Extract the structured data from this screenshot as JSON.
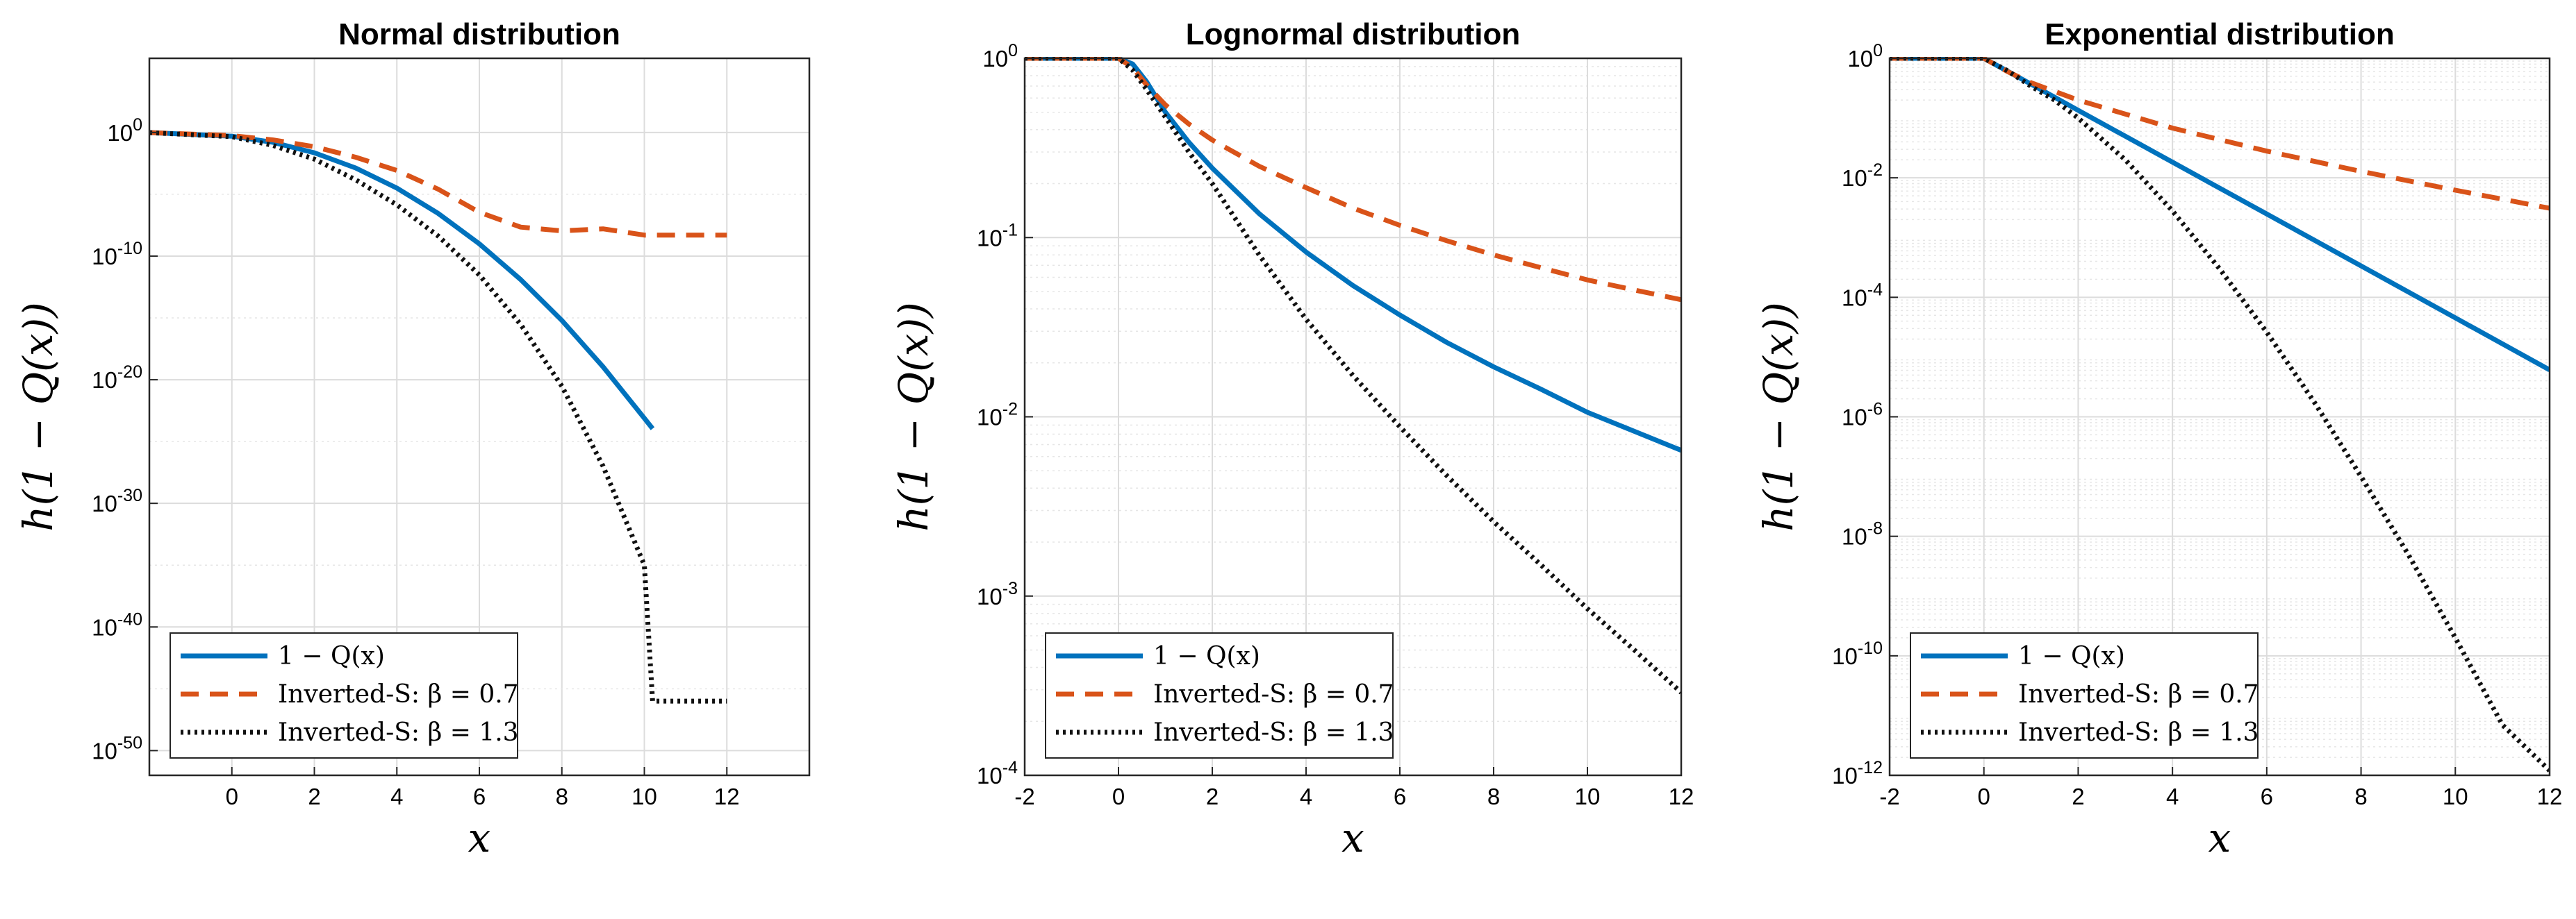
{
  "colors": {
    "blue": "#0072BD",
    "orange": "#D95319",
    "black": "#111111",
    "grid": "#d9d9d9"
  },
  "chart_data": [
    {
      "type": "line",
      "title": "Normal distribution",
      "xlabel": "x",
      "ylabel": "h(1 − Q(x))",
      "xlim": [
        -2,
        14
      ],
      "ylim": [
        1e-52,
        1000000.0
      ],
      "yscale": "log",
      "grid": true,
      "legend_position": "bottom-left",
      "xticks": [
        0,
        2,
        4,
        6,
        8,
        10,
        12
      ],
      "xtick_labels": [
        "0",
        "2",
        "4",
        "6",
        "8",
        "10",
        "12"
      ],
      "yticks": [
        1,
        1e-10,
        1e-20,
        1e-30,
        1e-40,
        1e-50
      ],
      "ytick_labels": [
        {
          "base": "10",
          "exp": "0"
        },
        {
          "base": "10",
          "exp": "-10"
        },
        {
          "base": "10",
          "exp": "-20"
        },
        {
          "base": "10",
          "exp": "-30"
        },
        {
          "base": "10",
          "exp": "-40"
        },
        {
          "base": "10",
          "exp": "-50"
        }
      ],
      "series": [
        {
          "name": "1 − Q(x)",
          "style": "solid",
          "color": "#0072BD",
          "x": [
            -2,
            0,
            1,
            2,
            3,
            4,
            5,
            6,
            7,
            8,
            9,
            10,
            10.2
          ],
          "y": [
            0.977,
            0.5,
            0.159,
            0.0228,
            0.00135,
            3.17e-05,
            2.87e-07,
            9.87e-10,
            1.28e-12,
            6.2e-16,
            1.1e-19,
            7.6e-24,
            1.1e-24
          ]
        },
        {
          "name": "Inverted-S: β = 0.7",
          "style": "dashed",
          "color": "#D95319",
          "x": [
            -2,
            0,
            1,
            2,
            3,
            4,
            5,
            6,
            7,
            8,
            9,
            10,
            12
          ],
          "y": [
            0.98,
            0.56,
            0.25,
            0.07,
            0.01,
            0.00085,
            2.6e-05,
            3.5e-07,
            2.2e-08,
            1.1e-08,
            1.6e-08,
            5e-09,
            5e-09
          ]
        },
        {
          "name": "Inverted-S: β = 1.3",
          "style": "dotted",
          "color": "#111111",
          "x": [
            -2,
            0,
            1,
            2,
            3,
            4,
            5,
            6,
            7,
            8,
            9,
            10,
            10.2,
            12
          ],
          "y": [
            0.97,
            0.46,
            0.09,
            0.007,
            0.00015,
            1.4e-06,
            4.3e-09,
            3e-12,
            3e-16,
            3e-21,
            1e-27,
            1e-35,
            1e-46,
            1e-46
          ]
        }
      ]
    },
    {
      "type": "line",
      "title": "Lognormal distribution",
      "xlabel": "x",
      "ylabel": "h(1 − Q(x))",
      "xlim": [
        -2,
        12
      ],
      "ylim": [
        0.0001,
        1
      ],
      "yscale": "log",
      "grid": true,
      "minor_grid": true,
      "legend_position": "bottom-left",
      "xticks": [
        -2,
        0,
        2,
        4,
        6,
        8,
        10,
        12
      ],
      "xtick_labels": [
        "-2",
        "0",
        "2",
        "4",
        "6",
        "8",
        "10",
        "12"
      ],
      "yticks": [
        1,
        0.1,
        0.01,
        0.001,
        0.0001
      ],
      "ytick_labels": [
        {
          "base": "10",
          "exp": "0"
        },
        {
          "base": "10",
          "exp": "-1"
        },
        {
          "base": "10",
          "exp": "-2"
        },
        {
          "base": "10",
          "exp": "-3"
        },
        {
          "base": "10",
          "exp": "-4"
        }
      ],
      "series": [
        {
          "name": "1 − Q(x)",
          "style": "solid",
          "color": "#0072BD",
          "x": [
            -2,
            0,
            0.3,
            0.6,
            1,
            1.5,
            2,
            3,
            4,
            5,
            6,
            7,
            8,
            9,
            10,
            11,
            12
          ],
          "y": [
            1,
            1,
            0.93,
            0.74,
            0.5,
            0.34,
            0.244,
            0.136,
            0.083,
            0.054,
            0.037,
            0.026,
            0.019,
            0.0143,
            0.0106,
            0.0083,
            0.0065
          ]
        },
        {
          "name": "Inverted-S: β = 0.7",
          "style": "dashed",
          "color": "#D95319",
          "x": [
            -2,
            0,
            0.3,
            0.6,
            1,
            1.5,
            2,
            3,
            4,
            5,
            6,
            7,
            8,
            9,
            10,
            11,
            12
          ],
          "y": [
            1,
            1,
            0.89,
            0.71,
            0.55,
            0.43,
            0.35,
            0.25,
            0.19,
            0.146,
            0.117,
            0.096,
            0.08,
            0.068,
            0.058,
            0.051,
            0.045
          ]
        },
        {
          "name": "Inverted-S: β = 1.3",
          "style": "dotted",
          "color": "#111111",
          "x": [
            -2,
            0,
            0.3,
            0.6,
            1,
            1.5,
            2,
            3,
            4,
            5,
            6,
            7,
            8,
            9,
            10,
            11,
            12
          ],
          "y": [
            1,
            1,
            0.86,
            0.67,
            0.47,
            0.3,
            0.2,
            0.08,
            0.035,
            0.017,
            0.0088,
            0.0047,
            0.0026,
            0.0015,
            0.00085,
            0.0005,
            0.00029
          ]
        }
      ]
    },
    {
      "type": "line",
      "title": "Exponential distribution",
      "xlabel": "x",
      "ylabel": "h(1 − Q(x))",
      "xlim": [
        -2,
        12
      ],
      "ylim": [
        1e-12,
        1
      ],
      "yscale": "log",
      "grid": true,
      "minor_grid": true,
      "legend_position": "bottom-left",
      "xticks": [
        -2,
        0,
        2,
        4,
        6,
        8,
        10,
        12
      ],
      "xtick_labels": [
        "-2",
        "0",
        "2",
        "4",
        "6",
        "8",
        "10",
        "12"
      ],
      "yticks": [
        1,
        0.01,
        0.0001,
        1e-06,
        1e-08,
        1e-10,
        1e-12
      ],
      "ytick_labels": [
        {
          "base": "10",
          "exp": "0"
        },
        {
          "base": "10",
          "exp": "-2"
        },
        {
          "base": "10",
          "exp": "-4"
        },
        {
          "base": "10",
          "exp": "-6"
        },
        {
          "base": "10",
          "exp": "-8"
        },
        {
          "base": "10",
          "exp": "-10"
        },
        {
          "base": "10",
          "exp": "-12"
        }
      ],
      "series": [
        {
          "name": "1 − Q(x)",
          "style": "solid",
          "color": "#0072BD",
          "x": [
            -2,
            0,
            0.5,
            1,
            2,
            4,
            6,
            8,
            10,
            12
          ],
          "y": [
            1,
            1,
            0.61,
            0.37,
            0.135,
            0.0183,
            0.00248,
            0.000335,
            4.54e-05,
            6.1e-06
          ]
        },
        {
          "name": "Inverted-S: β = 0.7",
          "style": "dashed",
          "color": "#D95319",
          "x": [
            -2,
            0,
            0.5,
            1,
            2,
            4,
            6,
            8,
            10,
            12
          ],
          "y": [
            1,
            1,
            0.6,
            0.39,
            0.2,
            0.068,
            0.028,
            0.0128,
            0.0062,
            0.0031
          ]
        },
        {
          "name": "Inverted-S: β = 1.3",
          "style": "dotted",
          "color": "#111111",
          "x": [
            -2,
            0,
            0.5,
            1,
            1.5,
            2,
            3,
            4,
            5,
            6,
            7,
            8,
            9,
            10,
            11,
            12
          ],
          "y": [
            1,
            1,
            0.62,
            0.34,
            0.2,
            0.1,
            0.02,
            0.0028,
            0.0003,
            2.6e-05,
            1.8e-06,
            1e-07,
            5e-09,
            2e-10,
            7e-12,
            1.2e-12
          ]
        }
      ]
    }
  ]
}
